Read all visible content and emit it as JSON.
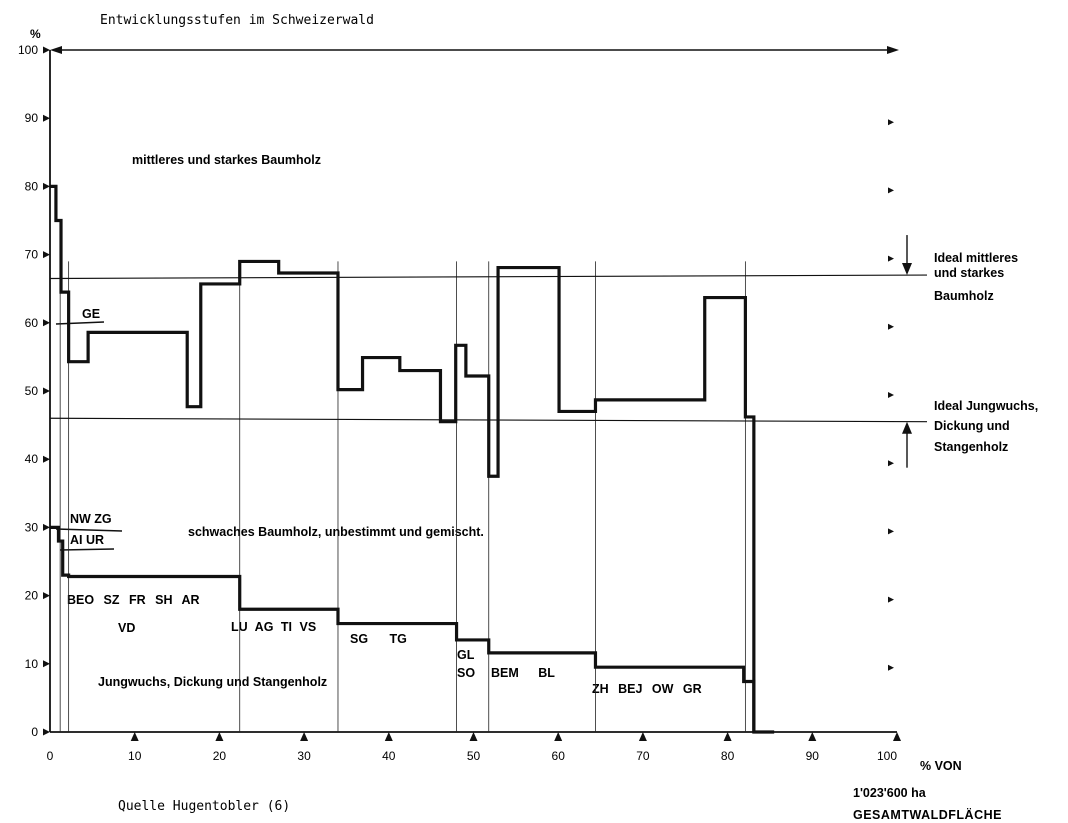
{
  "chart_data": {
    "type": "line",
    "title": "Entwicklungsstufen im Schweizerwald",
    "ylabel": "%",
    "xlabel_lines": [
      "% VON",
      "1'023'600 ha",
      "GESAMTWALDFLÄCHE"
    ],
    "source": "Quelle Hugentobler (6)",
    "xlim": [
      0,
      100
    ],
    "ylim": [
      0,
      100
    ],
    "x_ticks": [
      0,
      10,
      20,
      30,
      40,
      50,
      60,
      70,
      80,
      90,
      100
    ],
    "x_tick_labels": [
      "0",
      "10",
      "20",
      "30",
      "40",
      "50",
      "60",
      "70",
      "80",
      "90",
      "100"
    ],
    "y_ticks": [
      0,
      10,
      20,
      30,
      40,
      50,
      60,
      70,
      80,
      90,
      100
    ],
    "y_tick_labels": [
      "0",
      "10",
      "20",
      "30",
      "40",
      "50",
      "60",
      "70",
      "80",
      "90",
      "100"
    ],
    "ideal_lines": [
      {
        "y_start": 66.5,
        "y_end": 67,
        "label": [
          "Ideal mittleres",
          "und starkes",
          "Baumholz"
        ]
      },
      {
        "y_start": 46,
        "y_end": 45.5,
        "label": [
          "Ideal Jungwuchs,",
          "Dickung und",
          "Stangenholz"
        ]
      }
    ],
    "series": [
      {
        "points": [
          [
            0,
            80
          ],
          [
            0.7,
            80
          ],
          [
            0.7,
            75
          ],
          [
            1.3,
            75
          ],
          [
            1.3,
            64.5
          ],
          [
            2.2,
            64.5
          ],
          [
            2.2,
            54.3
          ],
          [
            4.5,
            54.3
          ],
          [
            4.5,
            58.6
          ],
          [
            16.2,
            58.6
          ],
          [
            16.2,
            47.7
          ],
          [
            17.8,
            47.7
          ],
          [
            17.8,
            65.7
          ],
          [
            22.4,
            65.7
          ],
          [
            22.4,
            69
          ],
          [
            27,
            69
          ],
          [
            27,
            67.3
          ],
          [
            34,
            67.3
          ],
          [
            34,
            50.2
          ],
          [
            36.9,
            50.2
          ],
          [
            36.9,
            54.9
          ],
          [
            41.3,
            54.9
          ],
          [
            41.3,
            53
          ],
          [
            46.1,
            53
          ],
          [
            46.1,
            45.5
          ],
          [
            47.9,
            45.5
          ],
          [
            47.9,
            56.7
          ],
          [
            49.1,
            56.7
          ],
          [
            49.1,
            52.2
          ],
          [
            51.8,
            52.2
          ],
          [
            51.8,
            37.5
          ],
          [
            52.9,
            37.5
          ],
          [
            52.9,
            68.1
          ],
          [
            60.1,
            68.1
          ],
          [
            60.1,
            47
          ],
          [
            64.4,
            47
          ],
          [
            64.4,
            48.7
          ],
          [
            77.3,
            48.7
          ],
          [
            77.3,
            63.7
          ],
          [
            82.1,
            63.7
          ],
          [
            82.1,
            46.2
          ],
          [
            83.1,
            46.2
          ],
          [
            83.1,
            0
          ],
          [
            85.5,
            0
          ]
        ]
      },
      {
        "points": [
          [
            0,
            30
          ],
          [
            1,
            30
          ],
          [
            1,
            28
          ],
          [
            1.5,
            28
          ],
          [
            1.5,
            23
          ],
          [
            2.2,
            23
          ],
          [
            2.2,
            22.8
          ],
          [
            22.4,
            22.8
          ],
          [
            22.4,
            18
          ],
          [
            34,
            18
          ],
          [
            34,
            15.9
          ],
          [
            48,
            15.9
          ],
          [
            48,
            13.5
          ],
          [
            51.8,
            13.5
          ],
          [
            51.8,
            11.6
          ],
          [
            64.4,
            11.6
          ],
          [
            64.4,
            9.5
          ],
          [
            81.9,
            9.5
          ],
          [
            81.9,
            7.4
          ],
          [
            83.1,
            7.4
          ],
          [
            83.1,
            0
          ]
        ]
      }
    ],
    "dividers": [
      1.2,
      2.2,
      22.4,
      34,
      48,
      51.8,
      64.4,
      82.1
    ],
    "region_labels": {
      "upper": "mittleres und starkes Baumholz",
      "middle": "schwaches Baumholz, unbestimmt und gemischt.",
      "lower": "Jungwuchs, Dickung und Stangenholz"
    },
    "canton_labels": {
      "ge": "GE",
      "nw_zg": "NW ZG",
      "ai_ur": "AI UR",
      "group1_row1": "BEO SZ FR SH AR",
      "group1_row2": "VD",
      "group2": "LU AG TI VS",
      "group3": "SG TG",
      "group4_row1": "GL",
      "group4_row2": "SO",
      "group5": "BEM BL",
      "group6": "ZH BEJ OW GR"
    }
  }
}
